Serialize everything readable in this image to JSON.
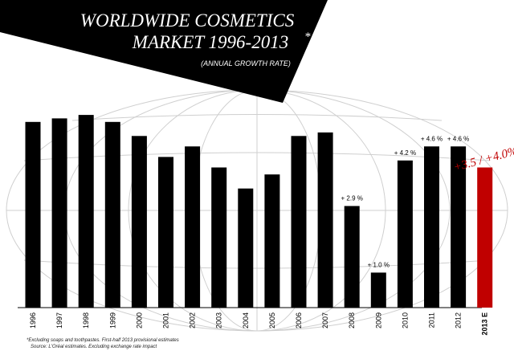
{
  "chart_data": {
    "type": "bar",
    "title_line1": "WORLDWIDE COSMETICS",
    "title_line2": "MARKET 1996-2013",
    "title_mark": "*",
    "subtitle": "(ANNUAL GROWTH RATE)",
    "categories": [
      "1996",
      "1997",
      "1998",
      "1999",
      "2000",
      "2001",
      "2002",
      "2003",
      "2004",
      "2005",
      "2006",
      "2007",
      "2008",
      "2009",
      "2010",
      "2011",
      "2012",
      "2013 E"
    ],
    "values": [
      5.3,
      5.4,
      5.5,
      5.3,
      4.9,
      4.3,
      4.6,
      4.0,
      3.4,
      3.8,
      4.9,
      5.0,
      2.9,
      1.0,
      4.2,
      4.6,
      4.6,
      4.0
    ],
    "data_labels": [
      "",
      "",
      "",
      "",
      "",
      "",
      "",
      "",
      "",
      "",
      "",
      "",
      "+ 2.9 %",
      "+ 1.0 %",
      "+ 4.2 %",
      "+ 4.6 %",
      "+ 4.6 %",
      "+3.5 / +4.0%"
    ],
    "highlight_color": "#c00000",
    "bar_color": "#000000",
    "ylim": [
      0,
      5.8
    ],
    "grid": "globe",
    "footnote_line1": "*Excluding soaps and toothpastes. First-half 2013 provisional estimates",
    "footnote_line2": "Source: L'Oréal estimates. Excluding exchange rate impact"
  }
}
